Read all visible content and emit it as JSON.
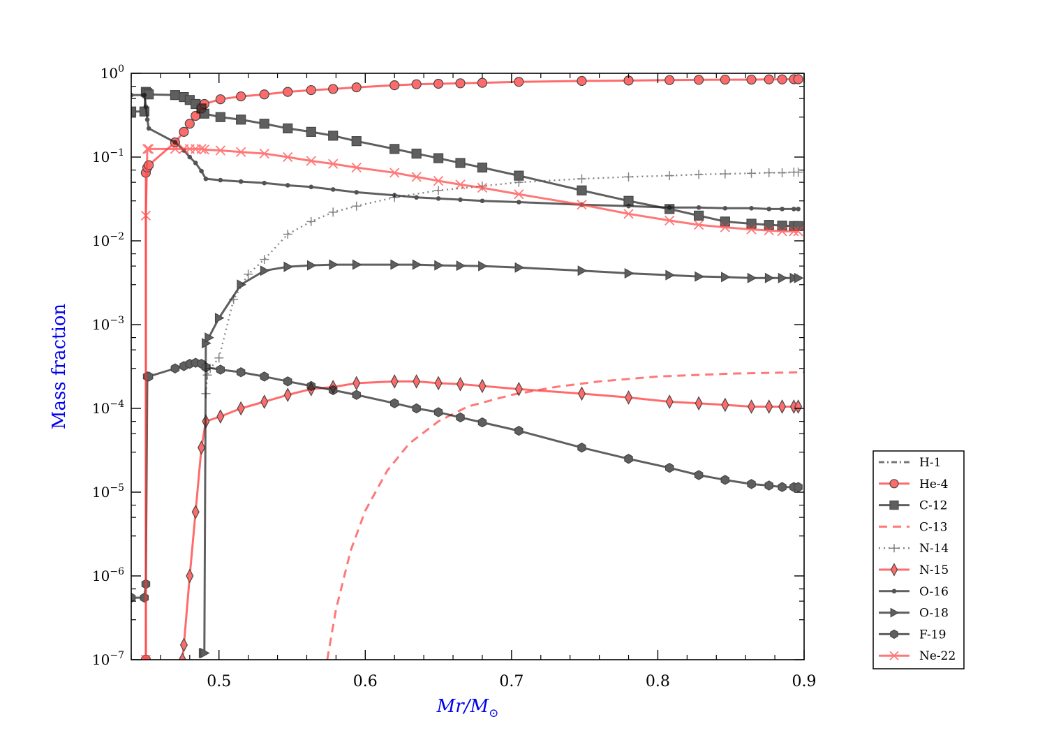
{
  "chart_data": {
    "type": "line",
    "ylabel": "Mass fraction",
    "xlabel_main": "Mr",
    "xlabel_slash": "/",
    "xlabel_denominator": "M",
    "xlabel_subscript": "⊙",
    "xlim": [
      0.44,
      0.9
    ],
    "ylim": [
      1e-07,
      1
    ],
    "yscale": "log",
    "x_ticks": [
      0.5,
      0.6,
      0.7,
      0.8,
      0.9
    ],
    "x_tick_labels": [
      "0.5",
      "0.6",
      "0.7",
      "0.8",
      "0.9"
    ],
    "y_ticks": [
      {
        "value": 1,
        "base": "10",
        "exp": "0"
      },
      {
        "value": 0.1,
        "base": "10",
        "exp": "−1"
      },
      {
        "value": 0.01,
        "base": "10",
        "exp": "−2"
      },
      {
        "value": 0.001,
        "base": "10",
        "exp": "−3"
      },
      {
        "value": 0.0001,
        "base": "10",
        "exp": "−4"
      },
      {
        "value": 1e-05,
        "base": "10",
        "exp": "−5"
      },
      {
        "value": 1e-06,
        "base": "10",
        "exp": "−6"
      },
      {
        "value": 1e-07,
        "base": "10",
        "exp": "−7"
      }
    ],
    "legend_placement": "outside-lower-right",
    "series": [
      {
        "name": "H-1",
        "color": "#444444",
        "dash": "dashdot",
        "marker": "none",
        "x": [],
        "y": []
      },
      {
        "name": "He-4",
        "color": "#ff3333",
        "dash": "solid",
        "marker": "circle",
        "x": [
          0.45,
          0.45,
          0.451,
          0.452,
          0.47,
          0.476,
          0.48,
          0.484,
          0.488,
          0.49,
          0.501,
          0.515,
          0.531,
          0.547,
          0.563,
          0.578,
          0.594,
          0.62,
          0.635,
          0.65,
          0.665,
          0.68,
          0.705,
          0.748,
          0.78,
          0.808,
          0.828,
          0.846,
          0.864,
          0.876,
          0.885,
          0.893,
          0.896
        ],
        "y": [
          1e-07,
          0.065,
          0.075,
          0.08,
          0.15,
          0.2,
          0.25,
          0.31,
          0.38,
          0.43,
          0.49,
          0.53,
          0.56,
          0.6,
          0.63,
          0.65,
          0.68,
          0.72,
          0.74,
          0.75,
          0.76,
          0.77,
          0.79,
          0.81,
          0.82,
          0.83,
          0.835,
          0.84,
          0.84,
          0.845,
          0.845,
          0.85,
          0.85
        ]
      },
      {
        "name": "C-12",
        "color": "#222222",
        "dash": "solid",
        "marker": "square",
        "x": [
          0.44,
          0.449,
          0.45,
          0.451,
          0.452,
          0.47,
          0.476,
          0.48,
          0.484,
          0.488,
          0.49,
          0.501,
          0.515,
          0.531,
          0.547,
          0.563,
          0.578,
          0.594,
          0.62,
          0.635,
          0.65,
          0.665,
          0.68,
          0.705,
          0.748,
          0.78,
          0.808,
          0.828,
          0.846,
          0.864,
          0.876,
          0.885,
          0.893,
          0.896
        ],
        "y": [
          0.35,
          0.35,
          0.6,
          0.58,
          0.56,
          0.55,
          0.52,
          0.48,
          0.43,
          0.38,
          0.33,
          0.3,
          0.28,
          0.25,
          0.22,
          0.2,
          0.18,
          0.155,
          0.125,
          0.11,
          0.097,
          0.085,
          0.075,
          0.06,
          0.04,
          0.03,
          0.024,
          0.02,
          0.017,
          0.016,
          0.0155,
          0.0152,
          0.015,
          0.015
        ]
      },
      {
        "name": "C-13",
        "color": "#ff4444",
        "dash": "dashed",
        "marker": "none",
        "x": [
          0.574,
          0.58,
          0.59,
          0.6,
          0.615,
          0.63,
          0.65,
          0.67,
          0.7,
          0.73,
          0.76,
          0.8,
          0.85,
          0.9
        ],
        "y": [
          1e-07,
          4e-07,
          2e-06,
          6e-06,
          1.8e-05,
          3.8e-05,
          7e-05,
          0.000105,
          0.000145,
          0.00018,
          0.00021,
          0.00024,
          0.00026,
          0.00027
        ]
      },
      {
        "name": "N-14",
        "color": "#555555",
        "dash": "dotted",
        "marker": "plus",
        "x": [
          0.491,
          0.492,
          0.494,
          0.5,
          0.51,
          0.52,
          0.531,
          0.547,
          0.563,
          0.578,
          0.594,
          0.62,
          0.65,
          0.68,
          0.705,
          0.748,
          0.78,
          0.808,
          0.828,
          0.846,
          0.864,
          0.876,
          0.885,
          0.893,
          0.896
        ],
        "y": [
          0.00015,
          0.00025,
          0.0003,
          0.0004,
          0.002,
          0.004,
          0.006,
          0.012,
          0.017,
          0.022,
          0.026,
          0.033,
          0.04,
          0.045,
          0.05,
          0.055,
          0.058,
          0.06,
          0.062,
          0.063,
          0.064,
          0.065,
          0.065,
          0.066,
          0.066
        ]
      },
      {
        "name": "N-15",
        "color": "#ff3333",
        "dash": "solid",
        "marker": "diamond",
        "x": [
          0.475,
          0.476,
          0.48,
          0.484,
          0.488,
          0.491,
          0.501,
          0.515,
          0.531,
          0.547,
          0.563,
          0.578,
          0.594,
          0.62,
          0.635,
          0.65,
          0.665,
          0.68,
          0.705,
          0.748,
          0.78,
          0.808,
          0.828,
          0.846,
          0.864,
          0.876,
          0.885,
          0.893,
          0.896
        ],
        "y": [
          1e-07,
          1.5e-07,
          1e-06,
          5.8e-06,
          3.4e-05,
          7e-05,
          8e-05,
          0.0001,
          0.00012,
          0.000145,
          0.00017,
          0.00018,
          0.0002,
          0.00021,
          0.00021,
          0.0002,
          0.000195,
          0.000185,
          0.00017,
          0.00015,
          0.000135,
          0.00012,
          0.000115,
          0.00011,
          0.000105,
          0.000105,
          0.000105,
          0.000105,
          0.000105
        ]
      },
      {
        "name": "O-16",
        "color": "#222222",
        "dash": "solid",
        "marker": "point",
        "x": [
          0.44,
          0.449,
          0.45,
          0.451,
          0.452,
          0.47,
          0.476,
          0.48,
          0.484,
          0.488,
          0.491,
          0.501,
          0.515,
          0.531,
          0.547,
          0.563,
          0.578,
          0.594,
          0.62,
          0.635,
          0.65,
          0.665,
          0.68,
          0.705,
          0.748,
          0.78,
          0.808,
          0.828,
          0.846,
          0.864,
          0.876,
          0.885,
          0.893,
          0.896
        ],
        "y": [
          0.55,
          0.55,
          0.4,
          0.28,
          0.22,
          0.15,
          0.12,
          0.1,
          0.085,
          0.068,
          0.055,
          0.053,
          0.051,
          0.049,
          0.046,
          0.044,
          0.041,
          0.038,
          0.035,
          0.033,
          0.032,
          0.031,
          0.03,
          0.029,
          0.027,
          0.026,
          0.025,
          0.025,
          0.0245,
          0.0245,
          0.024,
          0.024,
          0.024,
          0.024
        ]
      },
      {
        "name": "O-18",
        "color": "#222222",
        "dash": "solid",
        "marker": "triangle-right",
        "x": [
          0.489,
          0.49,
          0.491,
          0.493,
          0.5,
          0.515,
          0.531,
          0.547,
          0.563,
          0.578,
          0.594,
          0.62,
          0.635,
          0.65,
          0.665,
          0.68,
          0.705,
          0.748,
          0.78,
          0.808,
          0.828,
          0.846,
          0.864,
          0.876,
          0.885,
          0.893,
          0.896
        ],
        "y": [
          1.2e-07,
          1.2e-07,
          0.0006,
          0.0007,
          0.0012,
          0.003,
          0.0044,
          0.0049,
          0.0051,
          0.0052,
          0.0052,
          0.0052,
          0.0052,
          0.0051,
          0.00505,
          0.005,
          0.0048,
          0.0044,
          0.0041,
          0.0039,
          0.00375,
          0.0037,
          0.0036,
          0.0036,
          0.0036,
          0.0036,
          0.0036
        ]
      },
      {
        "name": "F-19",
        "color": "#222222",
        "dash": "solid",
        "marker": "hexagon",
        "x": [
          0.44,
          0.449,
          0.45,
          0.451,
          0.452,
          0.47,
          0.476,
          0.48,
          0.484,
          0.488,
          0.491,
          0.501,
          0.515,
          0.531,
          0.547,
          0.563,
          0.578,
          0.594,
          0.62,
          0.635,
          0.65,
          0.665,
          0.68,
          0.705,
          0.748,
          0.78,
          0.808,
          0.828,
          0.846,
          0.864,
          0.876,
          0.885,
          0.893,
          0.896
        ],
        "y": [
          5.5e-07,
          5.5e-07,
          8e-07,
          0.00024,
          0.00024,
          0.0003,
          0.00032,
          0.00034,
          0.00035,
          0.00034,
          0.00031,
          0.00029,
          0.00027,
          0.00024,
          0.00021,
          0.000185,
          0.000165,
          0.000145,
          0.000115,
          0.0001,
          9e-05,
          7.8e-05,
          6.8e-05,
          5.4e-05,
          3.4e-05,
          2.5e-05,
          1.95e-05,
          1.6e-05,
          1.4e-05,
          1.25e-05,
          1.2e-05,
          1.15e-05,
          1.15e-05,
          1.15e-05
        ]
      },
      {
        "name": "Ne-22",
        "color": "#ff4444",
        "dash": "solid",
        "marker": "x",
        "x": [
          0.45,
          0.45,
          0.451,
          0.452,
          0.47,
          0.476,
          0.48,
          0.484,
          0.488,
          0.49,
          0.501,
          0.515,
          0.531,
          0.547,
          0.563,
          0.578,
          0.594,
          0.62,
          0.635,
          0.65,
          0.665,
          0.68,
          0.705,
          0.748,
          0.78,
          0.808,
          0.828,
          0.846,
          0.864,
          0.876,
          0.885,
          0.893,
          0.896
        ],
        "y": [
          1e-07,
          0.02,
          0.125,
          0.125,
          0.125,
          0.125,
          0.125,
          0.125,
          0.125,
          0.123,
          0.12,
          0.115,
          0.11,
          0.1,
          0.09,
          0.083,
          0.075,
          0.065,
          0.058,
          0.052,
          0.047,
          0.043,
          0.036,
          0.027,
          0.021,
          0.0175,
          0.0155,
          0.0145,
          0.0137,
          0.0133,
          0.013,
          0.013,
          0.013
        ]
      }
    ]
  }
}
